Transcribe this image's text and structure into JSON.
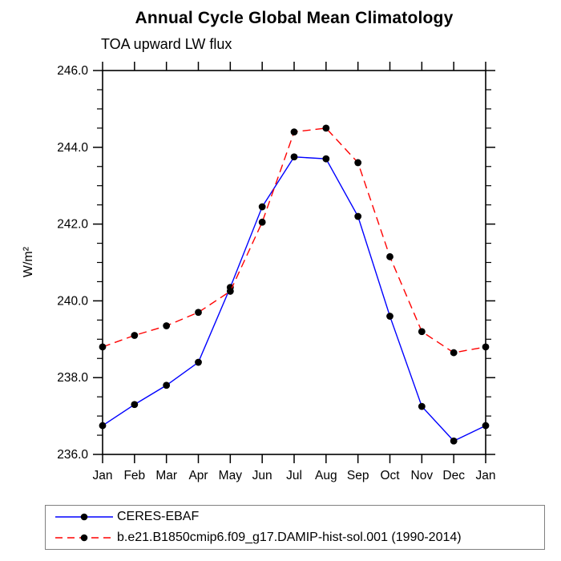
{
  "chart": {
    "title": "Annual Cycle Global Mean Climatology",
    "subtitle": "TOA upward LW flux",
    "ylabel": "W/m²"
  },
  "chart_data": {
    "type": "line",
    "categories": [
      "Jan",
      "Feb",
      "Mar",
      "Apr",
      "May",
      "Jun",
      "Jul",
      "Aug",
      "Sep",
      "Oct",
      "Nov",
      "Dec",
      "Jan"
    ],
    "series": [
      {
        "name": "CERES-EBAF",
        "color": "#0000ff",
        "style": "solid",
        "marker": "black-filled-circle",
        "marker_color": "#000000",
        "values": [
          236.75,
          237.3,
          237.8,
          238.4,
          240.35,
          242.45,
          243.75,
          243.7,
          242.2,
          239.6,
          237.25,
          236.35,
          236.75
        ]
      },
      {
        "name": "b.e21.B1850cmip6.f09_g17.DAMIP-hist-sol.001 (1990-2014)",
        "color": "#ff0000",
        "style": "dashed",
        "marker": "black-filled-circle",
        "marker_color": "#000000",
        "values": [
          238.8,
          239.1,
          239.35,
          239.7,
          240.25,
          242.05,
          244.4,
          244.5,
          243.6,
          241.15,
          239.2,
          238.65,
          238.8
        ]
      }
    ],
    "ylim": [
      236.0,
      246.0
    ],
    "yticks": [
      236.0,
      238.0,
      240.0,
      242.0,
      244.0,
      246.0
    ],
    "ytick_labels": [
      "236.0",
      "238.0",
      "240.0",
      "242.0",
      "244.0",
      "246.0"
    ],
    "y_minor_step": 0.5,
    "grid": false,
    "legend_position": "bottom",
    "axis_color": "#000000"
  },
  "legend": {
    "items": [
      {
        "label": "CERES-EBAF"
      },
      {
        "label": "b.e21.B1850cmip6.f09_g17.DAMIP-hist-sol.001 (1990-2014)"
      }
    ]
  }
}
